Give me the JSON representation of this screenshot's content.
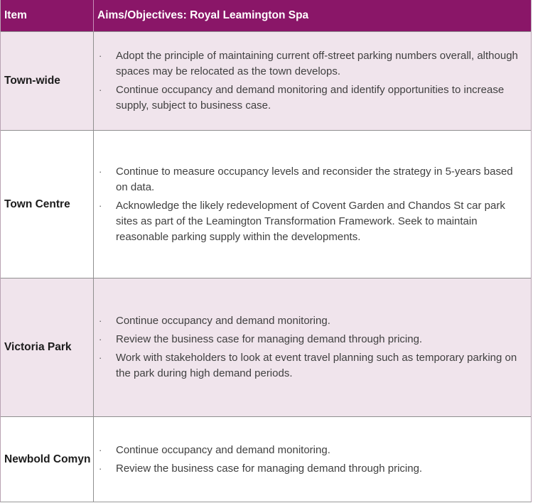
{
  "header": {
    "item": "Item",
    "aims": "Aims/Objectives: Royal Leamington Spa"
  },
  "rows": [
    {
      "item": "Town-wide",
      "bullets": [
        "Adopt the principle of maintaining current off-street parking numbers overall, although spaces may be relocated as the town develops.",
        "Continue occupancy and demand monitoring and identify opportunities to increase supply, subject to business case."
      ]
    },
    {
      "item": "Town Centre",
      "bullets": [
        "Continue to measure occupancy levels and reconsider the strategy in 5-years based on data.",
        "Acknowledge the likely redevelopment of Covent Garden and Chandos St car park sites as part of the Leamington Transformation Framework. Seek to maintain reasonable parking supply within the developments."
      ]
    },
    {
      "item": "Victoria Park",
      "bullets": [
        "Continue occupancy and demand monitoring.",
        "Review the business case for managing demand through pricing.",
        "Work with stakeholders to look at event travel planning such as temporary parking on the park during high demand periods."
      ]
    },
    {
      "item": "Newbold Comyn",
      "bullets": [
        "Continue occupancy and demand monitoring.",
        "Review the business case for managing demand through pricing."
      ]
    }
  ],
  "bullet_glyph": "·"
}
